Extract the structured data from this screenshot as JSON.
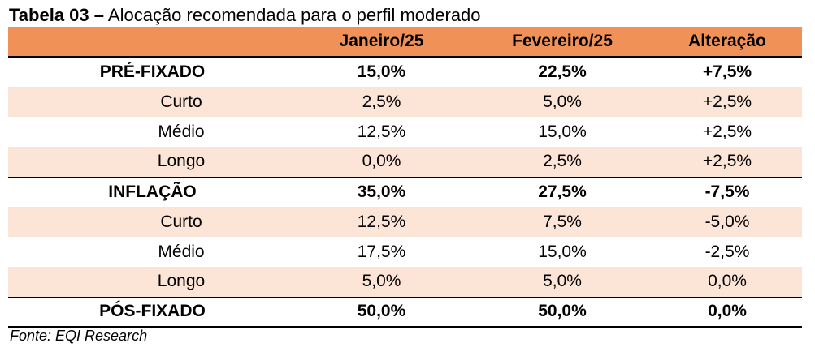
{
  "title": {
    "bold": "Tabela 03 –",
    "rest": "Alocação recomendada para o perfil moderado"
  },
  "columns": [
    "",
    "Janeiro/25",
    "Fevereiro/25",
    "Alteração"
  ],
  "rows": [
    {
      "type": "group",
      "label": "PRÉ-FIXADO",
      "jan": "15,0%",
      "fev": "22,5%",
      "alt": "+7,5%"
    },
    {
      "type": "sub",
      "label": "Curto",
      "jan": "2,5%",
      "fev": "5,0%",
      "alt": "+2,5%"
    },
    {
      "type": "sub",
      "label": "Médio",
      "jan": "12,5%",
      "fev": "15,0%",
      "alt": "+2,5%"
    },
    {
      "type": "sub",
      "label": "Longo",
      "jan": "0,0%",
      "fev": "2,5%",
      "alt": "+2,5%"
    },
    {
      "type": "group",
      "label": "INFLAÇÃO",
      "jan": "35,0%",
      "fev": "27,5%",
      "alt": "-7,5%"
    },
    {
      "type": "sub",
      "label": "Curto",
      "jan": "12,5%",
      "fev": "7,5%",
      "alt": "-5,0%"
    },
    {
      "type": "sub",
      "label": "Médio",
      "jan": "17,5%",
      "fev": "15,0%",
      "alt": "-2,5%"
    },
    {
      "type": "sub",
      "label": "Longo",
      "jan": "5,0%",
      "fev": "5,0%",
      "alt": "0,0%"
    },
    {
      "type": "group",
      "label": "PÓS-FIXADO",
      "jan": "50,0%",
      "fev": "50,0%",
      "alt": "0,0%"
    }
  ],
  "source": "Fonte: EQI Research",
  "colors": {
    "header_bg": "#F09157",
    "shaded_row_bg": "#FCE4D6",
    "text": "#000000"
  }
}
